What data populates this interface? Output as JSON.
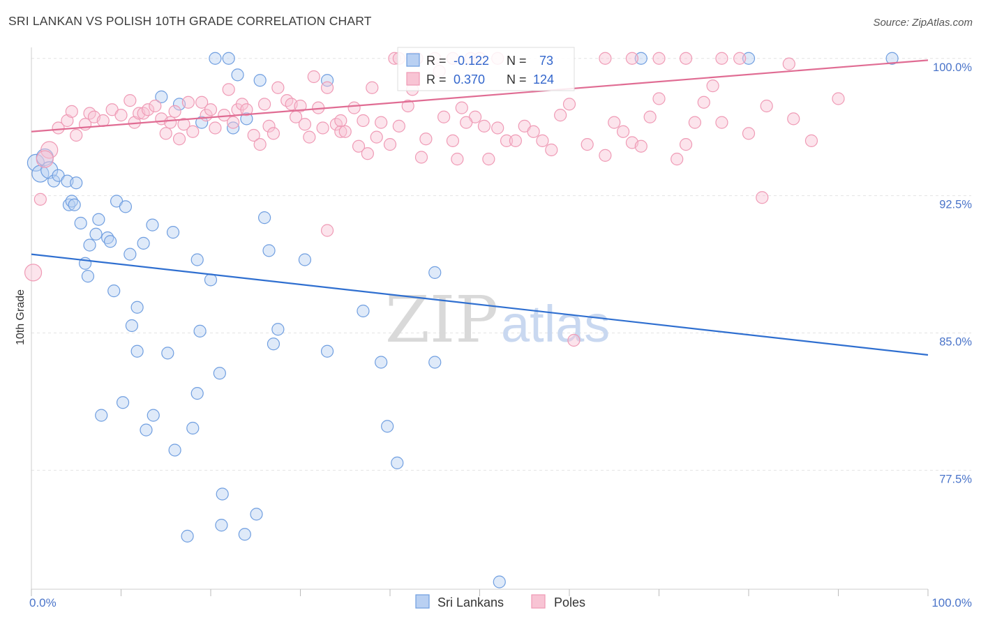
{
  "title": "SRI LANKAN VS POLISH 10TH GRADE CORRELATION CHART",
  "source": "Source: ZipAtlas.com",
  "chart_data": {
    "type": "scatter",
    "ylabel": "10th Grade",
    "xlim": [
      0,
      100
    ],
    "ylim": [
      71,
      100.6
    ],
    "yticks": [
      77.5,
      85.0,
      92.5,
      100.0
    ],
    "ytick_labels": [
      "77.5%",
      "85.0%",
      "92.5%",
      "100.0%"
    ],
    "xtick_labels": [
      "0.0%",
      "100.0%"
    ],
    "watermark": {
      "zip": "ZIP",
      "atlas": "atlas"
    },
    "legend": {
      "entries": [
        {
          "r_label": "R =",
          "r_value": "-0.122",
          "n_label": "N =",
          "n_value": "73",
          "series": "Sri Lankans"
        },
        {
          "r_label": "R =",
          "r_value": "0.370",
          "n_label": "N =",
          "n_value": "124",
          "series": "Poles"
        }
      ]
    },
    "series": [
      {
        "name": "Sri Lankans",
        "color": "#6f9ee0",
        "fill": "#b9d0f2",
        "line_color": "#2f6fd0",
        "trend": {
          "x": [
            0,
            100
          ],
          "y": [
            89.3,
            83.8
          ]
        },
        "points": [
          [
            20.5,
            100
          ],
          [
            22,
            100
          ],
          [
            23,
            99.1
          ],
          [
            25.5,
            98.8
          ],
          [
            33,
            98.8
          ],
          [
            68,
            100
          ],
          [
            80,
            100
          ],
          [
            96,
            100
          ],
          [
            14.5,
            97.9
          ],
          [
            16.5,
            97.5
          ],
          [
            19,
            96.5
          ],
          [
            22.5,
            96.2
          ],
          [
            24,
            96.7
          ],
          [
            0.5,
            94.3
          ],
          [
            1,
            93.7
          ],
          [
            1.5,
            94.6
          ],
          [
            2,
            93.9
          ],
          [
            2.5,
            93.3
          ],
          [
            3,
            93.6
          ],
          [
            4,
            93.3
          ],
          [
            5,
            93.2
          ],
          [
            4.2,
            92
          ],
          [
            4.5,
            92.2
          ],
          [
            4.8,
            92
          ],
          [
            9.5,
            92.2
          ],
          [
            10.5,
            91.9
          ],
          [
            5.5,
            91
          ],
          [
            7.5,
            91.2
          ],
          [
            7.2,
            90.4
          ],
          [
            8.5,
            90.2
          ],
          [
            8.8,
            90
          ],
          [
            6.5,
            89.8
          ],
          [
            11,
            89.3
          ],
          [
            12.5,
            89.9
          ],
          [
            13.5,
            90.9
          ],
          [
            15.8,
            90.5
          ],
          [
            18.5,
            89
          ],
          [
            26,
            91.3
          ],
          [
            26.5,
            89.5
          ],
          [
            30.5,
            89
          ],
          [
            6,
            88.8
          ],
          [
            6.3,
            88.1
          ],
          [
            20,
            87.9
          ],
          [
            9.2,
            87.3
          ],
          [
            11.8,
            86.4
          ],
          [
            11.2,
            85.4
          ],
          [
            18.8,
            85.1
          ],
          [
            27.5,
            85.2
          ],
          [
            37,
            86.2
          ],
          [
            45,
            88.3
          ],
          [
            27,
            84.4
          ],
          [
            33,
            84
          ],
          [
            39,
            83.4
          ],
          [
            45,
            83.4
          ],
          [
            11.8,
            84
          ],
          [
            15.2,
            83.9
          ],
          [
            21,
            82.8
          ],
          [
            18.5,
            81.7
          ],
          [
            10.2,
            81.2
          ],
          [
            7.8,
            80.5
          ],
          [
            13.6,
            80.5
          ],
          [
            12.8,
            79.7
          ],
          [
            18,
            79.8
          ],
          [
            39.7,
            79.9
          ],
          [
            16,
            78.6
          ],
          [
            40.8,
            77.9
          ],
          [
            21.3,
            76.2
          ],
          [
            25.1,
            75.1
          ],
          [
            21.2,
            74.5
          ],
          [
            17.4,
            73.9
          ],
          [
            23.8,
            74
          ],
          [
            52.2,
            71.4
          ]
        ]
      },
      {
        "name": "Poles",
        "color": "#ef9ab5",
        "fill": "#f8c4d4",
        "line_color": "#e06c93",
        "trend": {
          "x": [
            0,
            100
          ],
          "y": [
            96.0,
            99.9
          ]
        },
        "points": [
          [
            0.2,
            88.3
          ],
          [
            1,
            92.3
          ],
          [
            2,
            95
          ],
          [
            1.5,
            94.5
          ],
          [
            3,
            96.2
          ],
          [
            4,
            96.6
          ],
          [
            5,
            95.8
          ],
          [
            6,
            96.4
          ],
          [
            4.5,
            97.1
          ],
          [
            6.5,
            97
          ],
          [
            7,
            96.8
          ],
          [
            8,
            96.6
          ],
          [
            9,
            97.2
          ],
          [
            10,
            96.9
          ],
          [
            11,
            97.7
          ],
          [
            11.5,
            96.5
          ],
          [
            12,
            97
          ],
          [
            12.5,
            97
          ],
          [
            13,
            97.2
          ],
          [
            13.8,
            97.4
          ],
          [
            14.5,
            96.7
          ],
          [
            15,
            95.9
          ],
          [
            15.5,
            96.5
          ],
          [
            16,
            97.1
          ],
          [
            16.5,
            95.6
          ],
          [
            17,
            96.4
          ],
          [
            17.5,
            97.6
          ],
          [
            18,
            96
          ],
          [
            19,
            97.6
          ],
          [
            19.5,
            96.9
          ],
          [
            20,
            97.2
          ],
          [
            20.5,
            96.2
          ],
          [
            21.5,
            96.9
          ],
          [
            22,
            98.3
          ],
          [
            22.5,
            96.5
          ],
          [
            23,
            97.2
          ],
          [
            23.5,
            97.5
          ],
          [
            24,
            97.2
          ],
          [
            24.8,
            95.8
          ],
          [
            25.5,
            95.3
          ],
          [
            26,
            97.5
          ],
          [
            26.5,
            96.3
          ],
          [
            27,
            95.9
          ],
          [
            27.5,
            98.4
          ],
          [
            28.5,
            97.7
          ],
          [
            29,
            97.5
          ],
          [
            29.5,
            96.8
          ],
          [
            30,
            97.4
          ],
          [
            30.5,
            96.4
          ],
          [
            31,
            95.7
          ],
          [
            31.5,
            99
          ],
          [
            32,
            97.3
          ],
          [
            32.5,
            96.2
          ],
          [
            33,
            98.4
          ],
          [
            34,
            96.4
          ],
          [
            34.5,
            96
          ],
          [
            35,
            96
          ],
          [
            36,
            97.3
          ],
          [
            36.5,
            95.2
          ],
          [
            37,
            96.6
          ],
          [
            37.5,
            94.8
          ],
          [
            38,
            98.4
          ],
          [
            38.5,
            95.7
          ],
          [
            39,
            96.5
          ],
          [
            40,
            95.3
          ],
          [
            41,
            96.3
          ],
          [
            42,
            97.4
          ],
          [
            42.5,
            98.3
          ],
          [
            43.5,
            94.6
          ],
          [
            44,
            95.6
          ],
          [
            45.5,
            99.3
          ],
          [
            46,
            96.8
          ],
          [
            47,
            95.5
          ],
          [
            47.5,
            94.5
          ],
          [
            48,
            97.3
          ],
          [
            49.5,
            96.8
          ],
          [
            50.5,
            96.3
          ],
          [
            51,
            94.5
          ],
          [
            52,
            96.2
          ],
          [
            53,
            95.5
          ],
          [
            54,
            95.5
          ],
          [
            55,
            96.3
          ],
          [
            56,
            96
          ],
          [
            57,
            95.5
          ],
          [
            58,
            95
          ],
          [
            59,
            96.9
          ],
          [
            60,
            97.5
          ],
          [
            62,
            95.3
          ],
          [
            64,
            94.7
          ],
          [
            65,
            96.5
          ],
          [
            66,
            96
          ],
          [
            67,
            95.4
          ],
          [
            68,
            95.2
          ],
          [
            69,
            96.8
          ],
          [
            70,
            97.8
          ],
          [
            72,
            94.5
          ],
          [
            73,
            95.3
          ],
          [
            74,
            96.5
          ],
          [
            75,
            97.6
          ],
          [
            76,
            98.5
          ],
          [
            77,
            96.5
          ],
          [
            80,
            95.9
          ],
          [
            82,
            97.4
          ],
          [
            85,
            96.7
          ],
          [
            87,
            95.5
          ],
          [
            90,
            97.8
          ],
          [
            40.5,
            100
          ],
          [
            41,
            100
          ],
          [
            42.5,
            100
          ],
          [
            43,
            100
          ],
          [
            45,
            100
          ],
          [
            47,
            100
          ],
          [
            49,
            100
          ],
          [
            50,
            100
          ],
          [
            52,
            100
          ],
          [
            64,
            100
          ],
          [
            67,
            100
          ],
          [
            70,
            100
          ],
          [
            73,
            100
          ],
          [
            77,
            100
          ],
          [
            79,
            100
          ],
          [
            84.5,
            99.7
          ],
          [
            48.5,
            96.5
          ],
          [
            34.5,
            96.6
          ],
          [
            33,
            90.6
          ],
          [
            81.5,
            92.4
          ],
          [
            60.5,
            84.6
          ]
        ]
      }
    ]
  },
  "bottom_legend": {
    "items": [
      {
        "label": "Sri Lankans"
      },
      {
        "label": "Poles"
      }
    ]
  }
}
